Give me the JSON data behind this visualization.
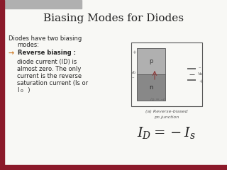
{
  "title": "Biasing Modes for Diodes",
  "bg_color": "#f8f8f5",
  "title_color": "#222222",
  "title_fontsize": 11,
  "border_left_color": "#8b1a2a",
  "header_bar_color": "#b0b0b0",
  "bullet_arrow": "→",
  "bullet_color": "#cc7722",
  "bullet_bold": "Reverse biasing :",
  "body_lines": [
    "diode current (ID) is",
    "almost zero. The only",
    "current is the reverse",
    "saturation current (Is or"
  ],
  "formula": "$I_D = -I_s$",
  "caption1": "(a) Reverse-biased",
  "caption2": "pn junction",
  "diagram_p_color": "#b0b0b0",
  "diagram_n_color": "#888888",
  "circuit_color": "#555555",
  "text_color": "#222222",
  "label_color": "#666666"
}
